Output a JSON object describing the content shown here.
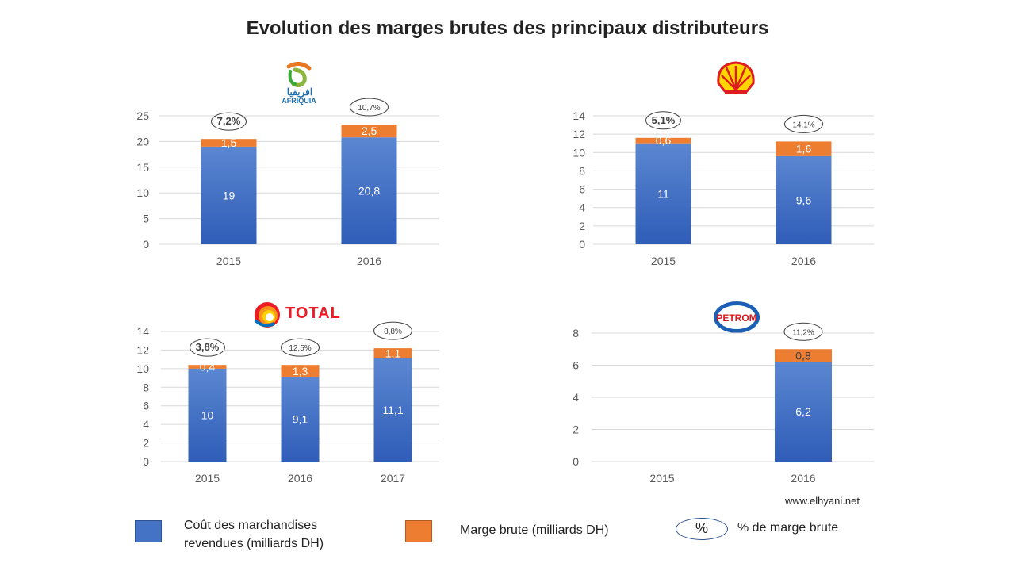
{
  "title": "Evolution des marges brutes des principaux distributeurs",
  "colors": {
    "cost": "#4472C4",
    "cost_dark": "#2F5DB8",
    "margin": "#ED7D31",
    "pct_border": "#404040"
  },
  "logos": {
    "afriquia": {
      "arabic": "افريقيا",
      "latin": "AFRIQUIA"
    },
    "shell": {
      "icon": "shell-logo-icon"
    },
    "total": {
      "text": "TOTAL"
    },
    "petrom": {
      "text": "PETROM"
    }
  },
  "legend": {
    "cost_line1": "Coût des marchandises",
    "cost_line2": "revendues (milliards DH)",
    "margin": "Marge brute (milliards DH)",
    "pct_symbol": "%",
    "pct_label": "% de marge brute"
  },
  "footer": "www.elhyani.net",
  "chart_data": [
    {
      "type": "bar",
      "stacked": true,
      "company": "Afriquia",
      "categories": [
        "2015",
        "2016"
      ],
      "ylim": [
        0,
        25
      ],
      "yticks": [
        "0",
        "5",
        "10",
        "15",
        "20",
        "25"
      ],
      "series": [
        {
          "key": "cost",
          "values": [
            19,
            20.8
          ],
          "labels": [
            "19",
            "20,8"
          ]
        },
        {
          "key": "margin",
          "values": [
            1.5,
            2.5
          ],
          "labels": [
            "1,5",
            "2,5"
          ]
        }
      ],
      "percent_labels": [
        "7,2%",
        "10,7%"
      ]
    },
    {
      "type": "bar",
      "stacked": true,
      "company": "Shell",
      "categories": [
        "2015",
        "2016"
      ],
      "ylim": [
        0,
        14
      ],
      "yticks": [
        "0",
        "2",
        "4",
        "6",
        "8",
        "10",
        "12",
        "14"
      ],
      "series": [
        {
          "key": "cost",
          "values": [
            11,
            9.6
          ],
          "labels": [
            "11",
            "9,6"
          ]
        },
        {
          "key": "margin",
          "values": [
            0.6,
            1.6
          ],
          "labels": [
            "0,6",
            "1,6"
          ]
        }
      ],
      "percent_labels": [
        "5,1%",
        "14,1%"
      ]
    },
    {
      "type": "bar",
      "stacked": true,
      "company": "Total",
      "categories": [
        "2015",
        "2016",
        "2017"
      ],
      "ylim": [
        0,
        14
      ],
      "yticks": [
        "0",
        "2",
        "4",
        "6",
        "8",
        "10",
        "12",
        "14"
      ],
      "series": [
        {
          "key": "cost",
          "values": [
            10,
            9.1,
            11.1
          ],
          "labels": [
            "10",
            "9,1",
            "11,1"
          ]
        },
        {
          "key": "margin",
          "values": [
            0.4,
            1.3,
            1.1
          ],
          "labels": [
            "0,4",
            "1,3",
            "1,1"
          ]
        }
      ],
      "percent_labels": [
        "3,8%",
        "12,5%",
        "8,8%"
      ]
    },
    {
      "type": "bar",
      "stacked": true,
      "company": "Petrom",
      "categories": [
        "2015",
        "2016"
      ],
      "ylim": [
        0,
        8
      ],
      "yticks": [
        "0",
        "2",
        "4",
        "6",
        "8"
      ],
      "series": [
        {
          "key": "cost",
          "values": [
            null,
            6.2
          ],
          "labels": [
            "",
            "6,2"
          ]
        },
        {
          "key": "margin",
          "values": [
            null,
            0.8
          ],
          "labels": [
            "",
            "0,8"
          ]
        }
      ],
      "percent_labels": [
        "",
        "11,2%"
      ]
    }
  ]
}
